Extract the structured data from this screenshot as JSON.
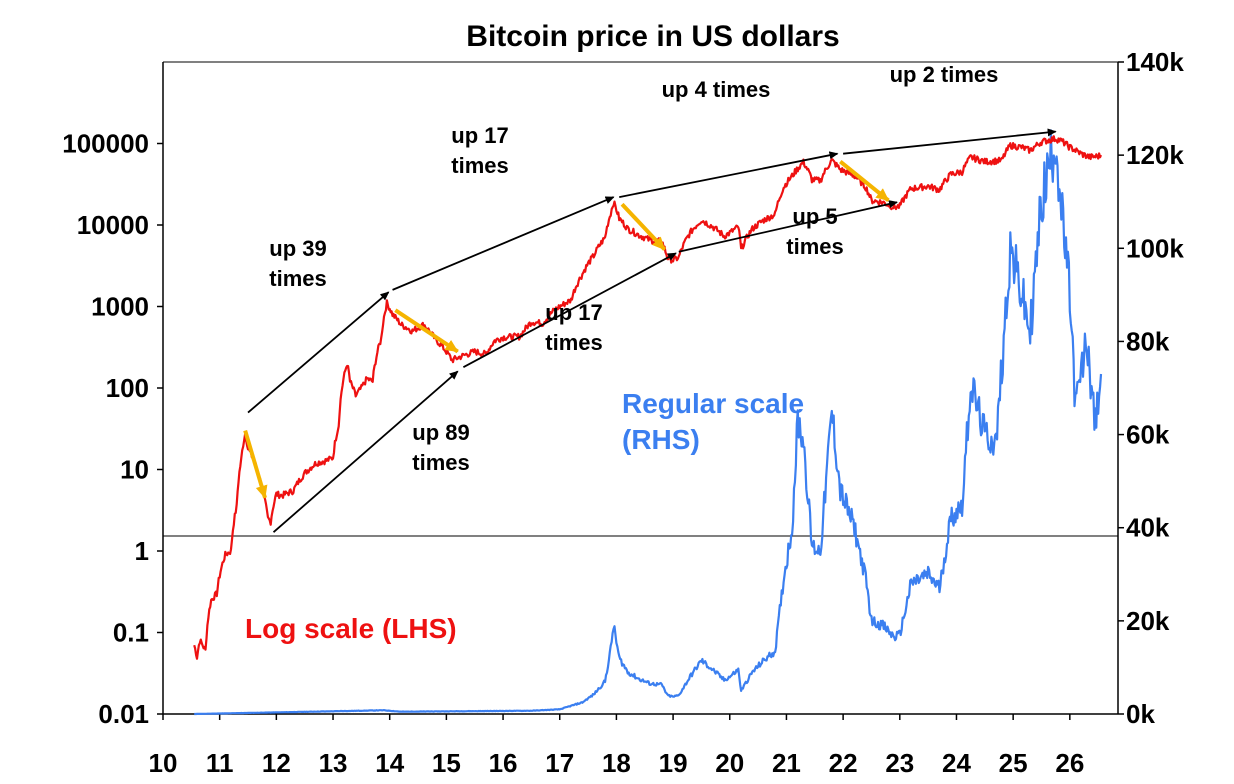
{
  "chart_data": {
    "type": "line",
    "title": "Bitcoin price in US dollars",
    "x_ticks": [
      "10",
      "11",
      "12",
      "13",
      "14",
      "15",
      "16",
      "17",
      "18",
      "19",
      "20",
      "21",
      "22",
      "23",
      "24",
      "25",
      "26"
    ],
    "left_axis": {
      "scale": "log",
      "range": [
        0.01,
        1000000
      ],
      "tick_labels": [
        "0.01",
        "0.1",
        "1",
        "10",
        "100",
        "1000",
        "10000",
        "100000"
      ]
    },
    "right_axis": {
      "scale": "linear",
      "range": [
        0,
        140000
      ],
      "tick_labels": [
        "0k",
        "20k",
        "40k",
        "60k",
        "80k",
        "100k",
        "120k",
        "140k"
      ]
    },
    "grid": false,
    "colors": {
      "log_series": "#ee1111",
      "regular_series": "#3b7ff0",
      "trend_arrows": "#000000",
      "drawdown_arrows": "#f5b400"
    },
    "series": [
      {
        "name": "Log scale (LHS)",
        "axis": "left",
        "points": [
          [
            10.55,
            0.07
          ],
          [
            10.6,
            0.05
          ],
          [
            10.65,
            0.08
          ],
          [
            10.75,
            0.06
          ],
          [
            10.85,
            0.25
          ],
          [
            10.95,
            0.3
          ],
          [
            11.0,
            0.5
          ],
          [
            11.1,
            0.9
          ],
          [
            11.2,
            1.0
          ],
          [
            11.3,
            3.5
          ],
          [
            11.38,
            13
          ],
          [
            11.45,
            28
          ],
          [
            11.5,
            18
          ],
          [
            11.6,
            13
          ],
          [
            11.7,
            8
          ],
          [
            11.8,
            4
          ],
          [
            11.85,
            2.5
          ],
          [
            11.9,
            2.3
          ],
          [
            12.0,
            5
          ],
          [
            12.1,
            4.8
          ],
          [
            12.3,
            5.5
          ],
          [
            12.5,
            9
          ],
          [
            12.7,
            12
          ],
          [
            12.9,
            13
          ],
          [
            13.0,
            14
          ],
          [
            13.1,
            35
          ],
          [
            13.25,
            200
          ],
          [
            13.3,
            120
          ],
          [
            13.4,
            80
          ],
          [
            13.5,
            100
          ],
          [
            13.6,
            130
          ],
          [
            13.7,
            120
          ],
          [
            13.85,
            400
          ],
          [
            13.95,
            1100
          ],
          [
            14.05,
            800
          ],
          [
            14.2,
            600
          ],
          [
            14.4,
            500
          ],
          [
            14.6,
            600
          ],
          [
            14.8,
            400
          ],
          [
            15.0,
            280
          ],
          [
            15.1,
            220
          ],
          [
            15.3,
            250
          ],
          [
            15.5,
            280
          ],
          [
            15.7,
            260
          ],
          [
            15.85,
            380
          ],
          [
            16.0,
            420
          ],
          [
            16.3,
            430
          ],
          [
            16.5,
            650
          ],
          [
            16.7,
            620
          ],
          [
            16.9,
            900
          ],
          [
            17.0,
            1000
          ],
          [
            17.2,
            1200
          ],
          [
            17.4,
            2500
          ],
          [
            17.6,
            4200
          ],
          [
            17.8,
            7000
          ],
          [
            17.9,
            14000
          ],
          [
            17.95,
            19000
          ],
          [
            18.05,
            12000
          ],
          [
            18.2,
            9000
          ],
          [
            18.4,
            7500
          ],
          [
            18.6,
            6500
          ],
          [
            18.8,
            6300
          ],
          [
            18.9,
            4000
          ],
          [
            19.0,
            3700
          ],
          [
            19.1,
            4000
          ],
          [
            19.3,
            8000
          ],
          [
            19.5,
            11500
          ],
          [
            19.7,
            9500
          ],
          [
            19.9,
            7300
          ],
          [
            20.0,
            8000
          ],
          [
            20.15,
            9500
          ],
          [
            20.2,
            5000
          ],
          [
            20.4,
            9000
          ],
          [
            20.6,
            11500
          ],
          [
            20.8,
            13500
          ],
          [
            20.95,
            29000
          ],
          [
            21.1,
            40000
          ],
          [
            21.3,
            59000
          ],
          [
            21.45,
            36000
          ],
          [
            21.6,
            35000
          ],
          [
            21.8,
            62000
          ],
          [
            21.95,
            48000
          ],
          [
            22.2,
            40000
          ],
          [
            22.4,
            29000
          ],
          [
            22.5,
            20000
          ],
          [
            22.7,
            19000
          ],
          [
            22.9,
            16500
          ],
          [
            23.0,
            17000
          ],
          [
            23.2,
            28000
          ],
          [
            23.5,
            30000
          ],
          [
            23.7,
            27000
          ],
          [
            23.9,
            42000
          ],
          [
            24.1,
            45000
          ],
          [
            24.25,
            68000
          ],
          [
            24.5,
            60000
          ],
          [
            24.8,
            62000
          ],
          [
            24.95,
            95000
          ],
          [
            25.15,
            90000
          ],
          [
            25.3,
            82000
          ],
          [
            25.5,
            105000
          ],
          [
            25.75,
            115000
          ],
          [
            25.85,
            108000
          ],
          [
            26.0,
            90000
          ],
          [
            26.2,
            75000
          ],
          [
            26.35,
            68000
          ],
          [
            26.5,
            70000
          ],
          [
            26.55,
            72000
          ]
        ]
      },
      {
        "name": "Regular scale (RHS)",
        "axis": "right",
        "points": [
          [
            10.55,
            0
          ],
          [
            13.9,
            800
          ],
          [
            14.2,
            500
          ],
          [
            16.5,
            700
          ],
          [
            17.0,
            1000
          ],
          [
            17.4,
            2500
          ],
          [
            17.6,
            4200
          ],
          [
            17.8,
            7000
          ],
          [
            17.9,
            14000
          ],
          [
            17.95,
            19000
          ],
          [
            18.05,
            12000
          ],
          [
            18.2,
            9000
          ],
          [
            18.4,
            7500
          ],
          [
            18.6,
            6500
          ],
          [
            18.8,
            6300
          ],
          [
            18.9,
            4000
          ],
          [
            19.0,
            3700
          ],
          [
            19.1,
            4000
          ],
          [
            19.3,
            8000
          ],
          [
            19.5,
            11500
          ],
          [
            19.7,
            9500
          ],
          [
            19.9,
            7300
          ],
          [
            20.0,
            8000
          ],
          [
            20.15,
            9500
          ],
          [
            20.2,
            5000
          ],
          [
            20.4,
            9000
          ],
          [
            20.6,
            11500
          ],
          [
            20.8,
            13500
          ],
          [
            20.95,
            29000
          ],
          [
            21.1,
            40000
          ],
          [
            21.2,
            63000
          ],
          [
            21.3,
            59000
          ],
          [
            21.45,
            36000
          ],
          [
            21.6,
            35000
          ],
          [
            21.8,
            65000
          ],
          [
            21.95,
            48000
          ],
          [
            22.2,
            40000
          ],
          [
            22.4,
            29000
          ],
          [
            22.5,
            20000
          ],
          [
            22.7,
            19000
          ],
          [
            22.9,
            16500
          ],
          [
            23.0,
            17000
          ],
          [
            23.2,
            28000
          ],
          [
            23.5,
            30000
          ],
          [
            23.7,
            27000
          ],
          [
            23.9,
            42000
          ],
          [
            24.1,
            45000
          ],
          [
            24.25,
            71000
          ],
          [
            24.5,
            60000
          ],
          [
            24.7,
            58000
          ],
          [
            24.95,
            100000
          ],
          [
            25.15,
            90000
          ],
          [
            25.3,
            82000
          ],
          [
            25.5,
            110000
          ],
          [
            25.75,
            124000
          ],
          [
            25.85,
            108000
          ],
          [
            26.0,
            90000
          ],
          [
            26.1,
            66000
          ],
          [
            26.3,
            80000
          ],
          [
            26.45,
            62000
          ],
          [
            26.55,
            73000
          ]
        ]
      }
    ],
    "annotations": [
      {
        "lines": [
          "up 39",
          "times"
        ],
        "arrow": [
          [
            11.5,
            50
          ],
          [
            13.98,
            1500
          ]
        ]
      },
      {
        "lines": [
          "up 89",
          "times"
        ],
        "arrow": [
          [
            11.95,
            1.7
          ],
          [
            15.2,
            160
          ]
        ]
      },
      {
        "lines": [
          "up 17",
          "times"
        ],
        "arrow": [
          [
            14.05,
            1600
          ],
          [
            17.95,
            22000
          ]
        ]
      },
      {
        "lines": [
          "up 17",
          "times"
        ],
        "arrow": [
          [
            15.3,
            180
          ],
          [
            19.05,
            4500
          ]
        ]
      },
      {
        "lines": [
          "up 4 times"
        ],
        "arrow": [
          [
            18.05,
            22000
          ],
          [
            21.9,
            75000
          ]
        ]
      },
      {
        "lines": [
          "up 5",
          "times"
        ],
        "arrow": [
          [
            19.1,
            4700
          ],
          [
            22.95,
            19000
          ]
        ]
      },
      {
        "lines": [
          "up 2 times"
        ],
        "arrow": [
          [
            22.0,
            75000
          ],
          [
            25.75,
            140000
          ]
        ]
      }
    ],
    "drawdown_arrows": [
      [
        [
          11.45,
          30
        ],
        [
          11.8,
          4.5
        ]
      ],
      [
        [
          14.1,
          900
        ],
        [
          15.2,
          280
        ]
      ],
      [
        [
          18.1,
          18000
        ],
        [
          18.85,
          5000
        ]
      ],
      [
        [
          21.95,
          60000
        ],
        [
          22.8,
          20000
        ]
      ]
    ],
    "series_labels": {
      "log": "Log scale (LHS)",
      "regular_line1": "Regular scale",
      "regular_line2": "(RHS)"
    }
  }
}
